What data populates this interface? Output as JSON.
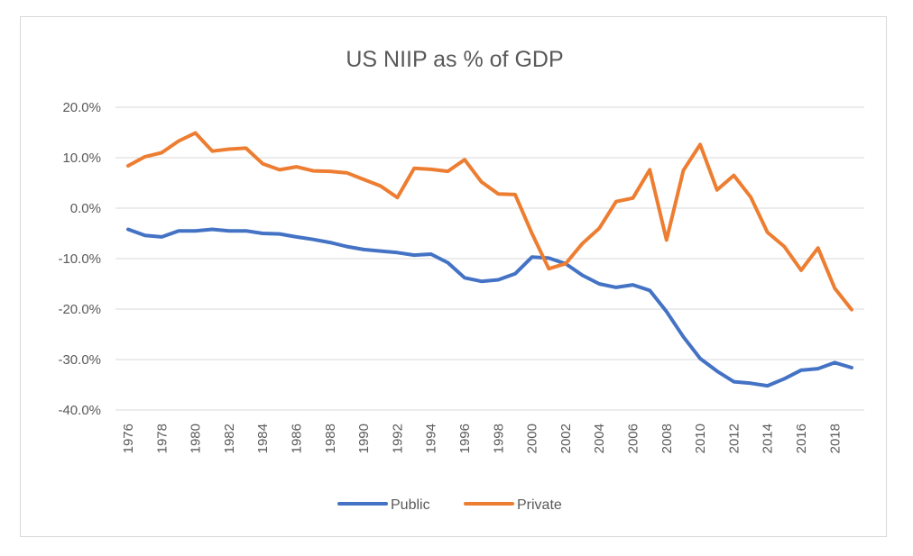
{
  "chart_data": {
    "type": "line",
    "title": "US NIIP as % of GDP",
    "xlabel": "",
    "ylabel": "",
    "x": [
      1976,
      1977,
      1978,
      1979,
      1980,
      1981,
      1982,
      1983,
      1984,
      1985,
      1986,
      1987,
      1988,
      1989,
      1990,
      1991,
      1992,
      1993,
      1994,
      1995,
      1996,
      1997,
      1998,
      1999,
      2000,
      2001,
      2002,
      2003,
      2004,
      2005,
      2006,
      2007,
      2008,
      2009,
      2010,
      2011,
      2012,
      2013,
      2014,
      2015,
      2016,
      2017,
      2018,
      2019
    ],
    "xticks": [
      1976,
      1978,
      1980,
      1982,
      1984,
      1986,
      1988,
      1990,
      1992,
      1994,
      1996,
      1998,
      2000,
      2002,
      2004,
      2006,
      2008,
      2010,
      2012,
      2014,
      2016,
      2018
    ],
    "xtick_labels": [
      "1976",
      "1978",
      "1980",
      "1982",
      "1984",
      "1986",
      "1988",
      "1990",
      "1992",
      "1994",
      "1996",
      "1998",
      "2000",
      "2002",
      "2004",
      "2006",
      "2008",
      "2010",
      "2012",
      "2014",
      "2016",
      "2018"
    ],
    "ylim": [
      -40,
      20
    ],
    "yticks": [
      20,
      10,
      0,
      -10,
      -20,
      -30,
      -40
    ],
    "ytick_labels": [
      "20.0%",
      "10.0%",
      "0.0%",
      "-10.0%",
      "-20.0%",
      "-30.0%",
      "-40.0%"
    ],
    "grid": true,
    "legend_position": "bottom",
    "series": [
      {
        "name": "Public",
        "color": "#4472c4",
        "values": [
          -4.2,
          -5.4,
          -5.7,
          -4.5,
          -4.5,
          -4.2,
          -4.5,
          -4.5,
          -5.0,
          -5.1,
          -5.7,
          -6.2,
          -6.8,
          -7.6,
          -8.2,
          -8.5,
          -8.8,
          -9.3,
          -9.1,
          -10.8,
          -13.8,
          -14.5,
          -14.2,
          -13.0,
          -9.7,
          -9.9,
          -11.0,
          -13.3,
          -15.0,
          -15.7,
          -15.2,
          -16.3,
          -20.5,
          -25.5,
          -29.8,
          -32.3,
          -34.4,
          -34.7,
          -35.2,
          -33.8,
          -32.1,
          -31.8,
          -30.6,
          -31.6
        ]
      },
      {
        "name": "Private",
        "color": "#ed7d31",
        "values": [
          8.4,
          10.2,
          11.0,
          13.3,
          14.9,
          11.3,
          11.7,
          11.9,
          8.8,
          7.6,
          8.2,
          7.4,
          7.3,
          7.0,
          5.7,
          4.4,
          2.1,
          7.9,
          7.7,
          7.3,
          9.6,
          5.2,
          2.8,
          2.7,
          -5.0,
          -12.0,
          -11.0,
          -7.0,
          -4.0,
          1.3,
          2.0,
          7.6,
          -6.3,
          7.5,
          12.6,
          3.6,
          6.5,
          2.2,
          -4.8,
          -7.6,
          -12.3,
          -7.9,
          -15.9,
          -20.1
        ]
      }
    ]
  }
}
